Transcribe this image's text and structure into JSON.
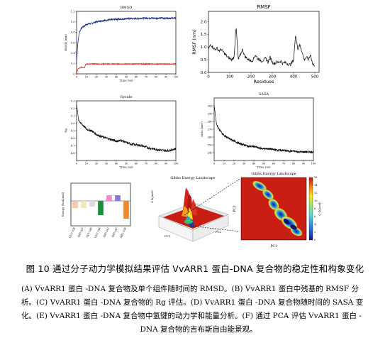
{
  "chart_data": [
    {
      "id": "rmsd",
      "type": "line",
      "title": "RMSD",
      "xlabel": "Time (ns)",
      "ylabel": "RMSD (nm)",
      "xlim": [
        0,
        100
      ],
      "ylim": [
        0,
        1.2
      ],
      "xticks": [
        "0",
        "10",
        "20",
        "30",
        "40",
        "50",
        "60",
        "70",
        "80",
        "90",
        "100"
      ],
      "yticks": [
        "0",
        "0.2",
        "0.4",
        "0.6",
        "0.8",
        "1.0",
        "1.2"
      ],
      "series": [
        {
          "color": "#1a2f8a",
          "x": [
            0,
            1,
            2,
            3,
            4,
            5,
            6,
            8,
            10,
            15,
            20,
            25,
            30,
            35,
            40,
            45,
            50,
            55,
            60,
            65,
            70,
            75,
            80,
            85,
            90,
            95,
            100
          ],
          "y": [
            0.2,
            0.55,
            0.7,
            0.8,
            0.85,
            0.88,
            0.9,
            0.92,
            0.95,
            0.97,
            1.0,
            1.02,
            1.03,
            1.04,
            1.05,
            1.05,
            1.06,
            1.06,
            1.06,
            1.07,
            1.07,
            1.07,
            1.07,
            1.07,
            1.07,
            1.07,
            1.07
          ]
        },
        {
          "color": "#e0221a",
          "x": [
            0,
            1,
            2,
            3,
            4,
            5,
            6,
            8,
            9,
            10,
            15,
            20,
            30,
            40,
            50,
            60,
            70,
            80,
            90,
            100
          ],
          "y": [
            0.0,
            0.08,
            0.1,
            0.11,
            0.12,
            0.13,
            0.12,
            0.12,
            0.18,
            0.19,
            0.19,
            0.19,
            0.19,
            0.19,
            0.19,
            0.19,
            0.19,
            0.19,
            0.19,
            0.19
          ]
        }
      ]
    },
    {
      "id": "rmsf",
      "type": "line",
      "title": "RMSF",
      "xlabel": "Residues",
      "ylabel": "RMSF (nm)",
      "xlim": [
        0,
        520
      ],
      "ylim": [
        0,
        2.4
      ],
      "xticks": [
        "0",
        "100",
        "200",
        "300",
        "400",
        "500"
      ],
      "yticks": [
        "0.0",
        "0.5",
        "1.0",
        "1.5",
        "2.0"
      ],
      "series": [
        {
          "color": "#000000",
          "x": [
            0,
            10,
            20,
            30,
            40,
            50,
            60,
            70,
            80,
            90,
            100,
            110,
            120,
            130,
            140,
            150,
            160,
            170,
            180,
            190,
            200,
            210,
            220,
            230,
            240,
            250,
            260,
            270,
            280,
            290,
            300,
            310,
            320,
            330,
            340,
            350,
            360,
            370,
            380,
            390,
            400,
            410,
            420,
            430,
            440,
            450,
            460,
            470,
            480,
            490,
            500
          ],
          "y": [
            0.9,
            1.1,
            1.0,
            0.9,
            0.95,
            0.85,
            0.9,
            0.8,
            0.7,
            0.6,
            0.55,
            0.5,
            0.6,
            1.8,
            0.5,
            0.7,
            0.9,
            0.65,
            0.55,
            0.5,
            0.45,
            0.5,
            0.7,
            0.55,
            0.5,
            0.45,
            0.5,
            0.55,
            0.4,
            0.6,
            0.4,
            0.35,
            0.4,
            0.4,
            0.45,
            0.35,
            0.4,
            0.35,
            0.3,
            0.35,
            0.5,
            1.5,
            0.9,
            1.1,
            0.8,
            0.5,
            0.6,
            0.5,
            0.7,
            0.3,
            0.3
          ]
        }
      ]
    },
    {
      "id": "gyrate",
      "type": "line",
      "title": "Gyrate",
      "xlabel": "Time (ns)",
      "ylabel": "Rg",
      "xlim": [
        0,
        100
      ],
      "ylim": [
        4.5,
        5.3
      ],
      "xticks": [
        "0",
        "10",
        "20",
        "30",
        "40",
        "50",
        "60",
        "70",
        "80",
        "90",
        "100"
      ],
      "yticks": [
        "4.6",
        "4.7",
        "4.8",
        "4.9",
        "5.0",
        "5.1",
        "5.2",
        "5.3"
      ],
      "series": [
        {
          "color": "#000000",
          "x": [
            0,
            2,
            4,
            6,
            8,
            10,
            15,
            20,
            25,
            30,
            35,
            40,
            45,
            50,
            55,
            60,
            65,
            70,
            75,
            80,
            85,
            90,
            95,
            100
          ],
          "y": [
            5.25,
            5.05,
            5.0,
            4.98,
            4.95,
            4.92,
            4.9,
            4.85,
            4.82,
            4.8,
            4.78,
            4.76,
            4.77,
            4.74,
            4.72,
            4.71,
            4.7,
            4.68,
            4.66,
            4.65,
            4.64,
            4.63,
            4.64,
            4.66
          ]
        }
      ]
    },
    {
      "id": "sasa",
      "type": "line",
      "title": "SASA",
      "xlabel": "Time (ns)",
      "ylabel": "Area (nm²)",
      "xlim": [
        0,
        100
      ],
      "ylim": [
        230,
        310
      ],
      "xticks": [
        "0",
        "10",
        "20",
        "30",
        "40",
        "50",
        "60",
        "70",
        "80",
        "90",
        "100"
      ],
      "yticks": [
        "240",
        "250",
        "260",
        "270",
        "280",
        "290",
        "300"
      ],
      "series": [
        {
          "color": "#000000",
          "x": [
            0,
            1,
            2,
            3,
            5,
            8,
            10,
            15,
            20,
            25,
            30,
            35,
            40,
            45,
            50,
            55,
            60,
            65,
            70,
            75,
            80,
            85,
            90,
            95,
            100
          ],
          "y": [
            300,
            290,
            280,
            275,
            270,
            265,
            262,
            258,
            255,
            252,
            250,
            248,
            248,
            246,
            245,
            245,
            244,
            243,
            243,
            242,
            242,
            241,
            241,
            241,
            241
          ]
        }
      ]
    },
    {
      "id": "energy",
      "type": "bar",
      "title": "",
      "xlabel": "",
      "ylabel": "Energy (kcal/mol)",
      "categories": [
        "GLU-108",
        "ASP-167",
        "LYS-180",
        "GLU-186",
        "ASP-242",
        "ASP-247",
        "ARG-338"
      ],
      "values": [
        -1.0,
        -1.0,
        -0.8,
        -2.0,
        0.8,
        0.8,
        -2.5
      ],
      "colors": [
        "#f1c9b0",
        "#f4e7b8",
        "#dcdcdc",
        "#1d8e3c",
        "#f08ad0",
        "#8a7ad8",
        "#ef8a2c"
      ],
      "ylim": [
        -3.5,
        2.5
      ]
    },
    {
      "id": "fel3d",
      "type": "heatmap",
      "title": "Gibbs Energy Landscape",
      "xlabel": "PC1",
      "ylabel": "PC2",
      "zlabel": "G (kJ/mol)"
    },
    {
      "id": "fel2d",
      "type": "heatmap",
      "title": "Gibbs Energy Landscape",
      "xlabel": "PC1",
      "ylabel": "PC2",
      "colorbar_label": "G (kJ/mol)",
      "colorbar_ticks": [
        "0",
        "2",
        "4",
        "6",
        "8",
        "10",
        "12",
        "14",
        "16"
      ]
    }
  ],
  "caption": {
    "title": "图 10  通过分子动力学模拟结果评估 VvARR1 蛋白-DNA 复合物的稳定性和构象变化",
    "lines": [
      "(A) VvARR1 蛋白 -DNA 复合物及单个组件随时间的 RMSD。(B) VvARR1 蛋白中残基的 RMSF 分",
      "析。(C) VvARR1 蛋白 -DNA 复合物的 Rg 评估。(D) VvARR1 蛋白 -DNA 复合物随时间的 SASA 变",
      "化。(E) VvARR1 蛋白 -DNA 复合物中氢键的动力学和能量分析。(F) 通过 PCA 评估 VvARR1 蛋白 -",
      "DNA 复合物的吉布斯自由能景观。"
    ]
  }
}
